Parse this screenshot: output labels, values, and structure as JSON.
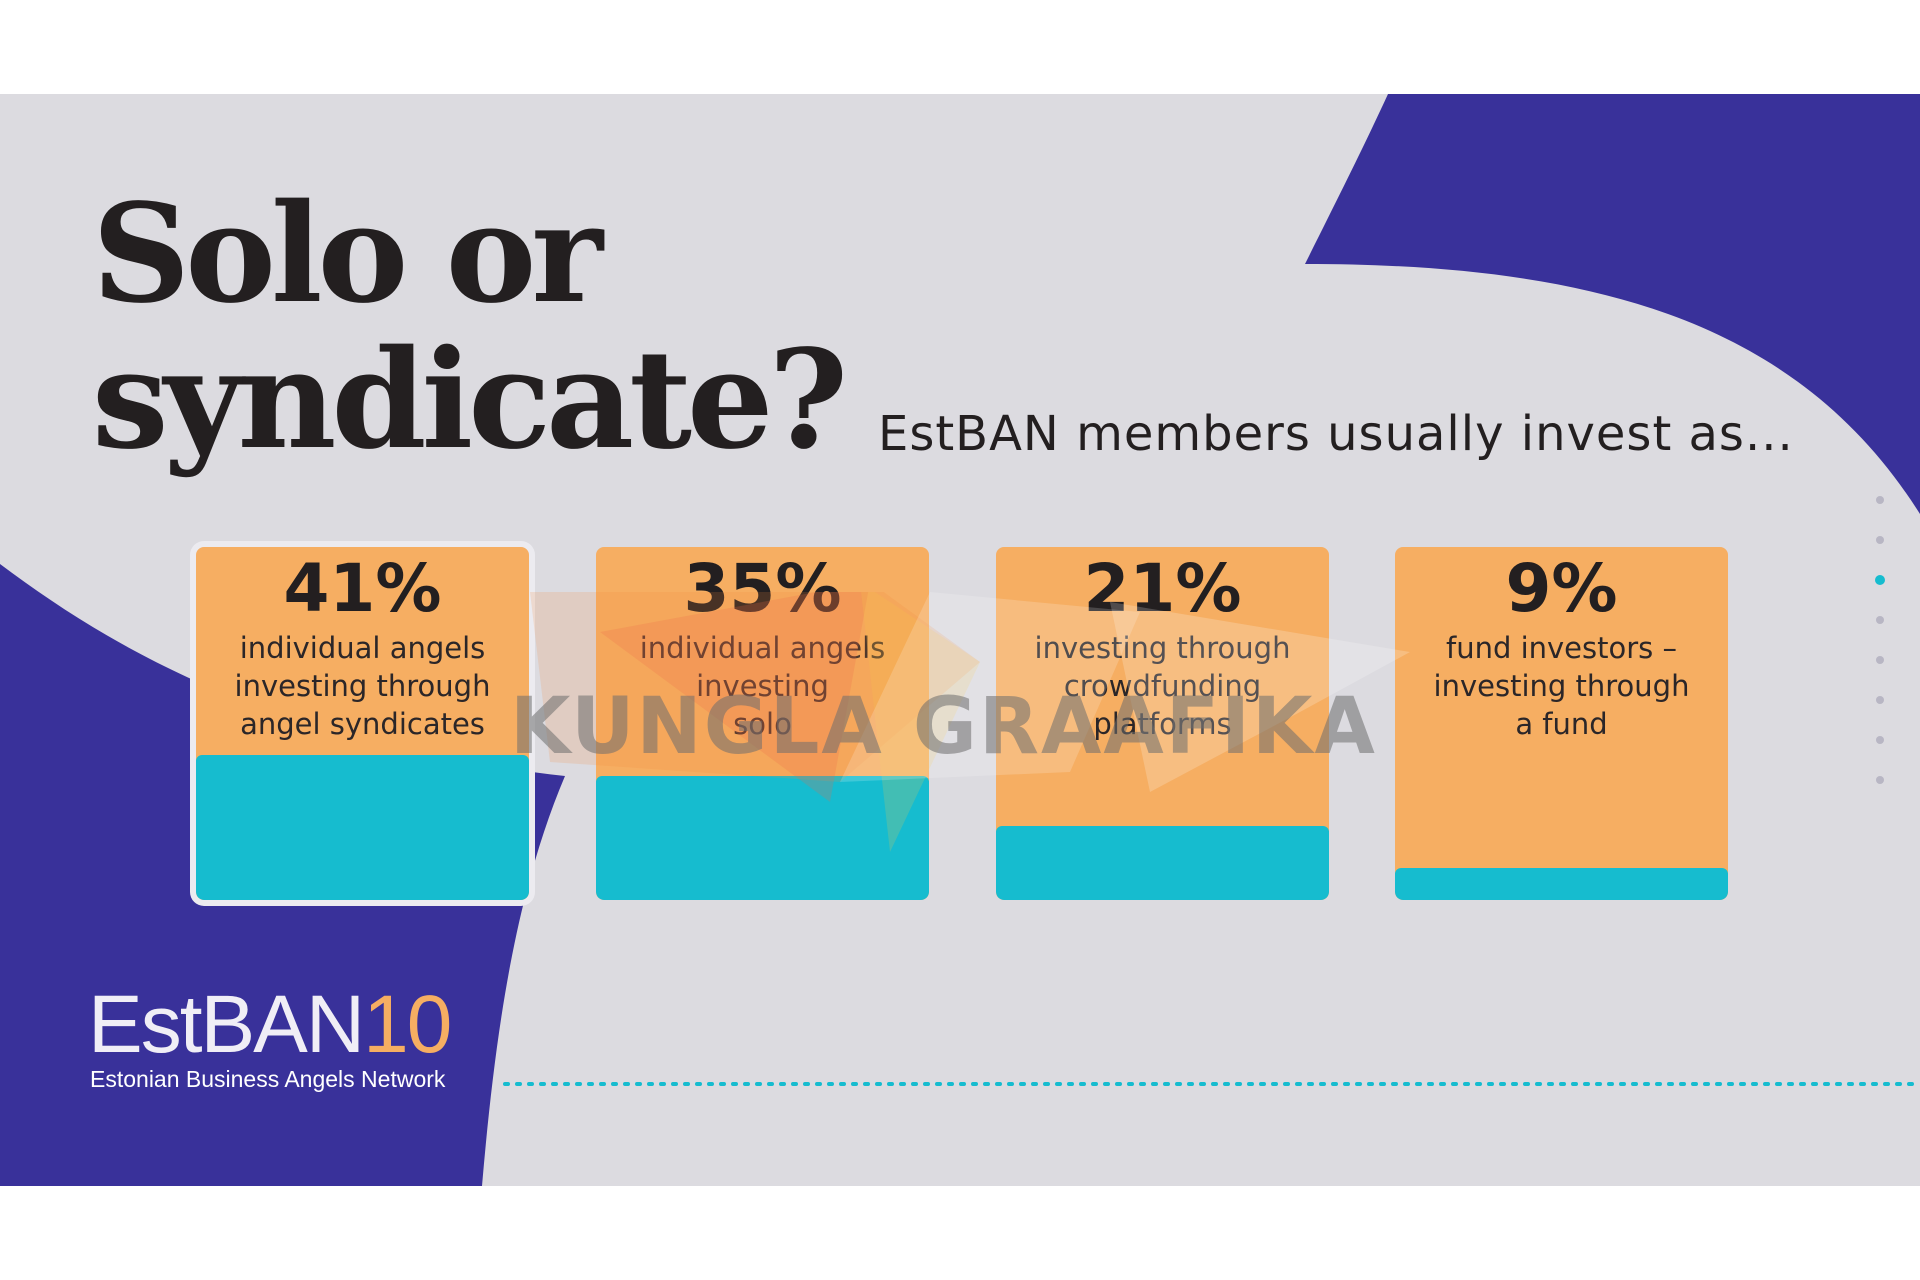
{
  "title_line1": "Solo or",
  "title_line2": "syndicate?",
  "subtitle": "EstBAN members usually invest as...",
  "colors": {
    "background": "#dcdbe0",
    "navy": "#39319a",
    "orange": "#f6ae62",
    "teal": "#16bccf",
    "text": "#231f20"
  },
  "chart_data": {
    "type": "bar",
    "title": "Solo or syndicate?",
    "subtitle": "EstBAN members usually invest as...",
    "categories": [
      "individual angels investing through angel syndicates",
      "individual angels investing solo",
      "investing through crowdfunding platforms",
      "fund investors – investing through a fund"
    ],
    "values": [
      41,
      35,
      21,
      9
    ],
    "unit": "%",
    "ylim": [
      0,
      100
    ],
    "bars": [
      {
        "label": "41%",
        "lines": [
          "individual angels",
          "investing through",
          "angel syndicates"
        ],
        "value": 41,
        "highlight": true
      },
      {
        "label": "35%",
        "lines": [
          "individual angels",
          "investing",
          "solo"
        ],
        "value": 35,
        "highlight": false
      },
      {
        "label": "21%",
        "lines": [
          "investing through",
          "crowdfunding",
          "platforms"
        ],
        "value": 21,
        "highlight": false
      },
      {
        "label": "9%",
        "lines": [
          "fund investors –",
          "investing through",
          "a fund"
        ],
        "value": 9,
        "highlight": false
      }
    ]
  },
  "logo": {
    "main": "EstBAN",
    "number": "10",
    "tagline": "Estonian Business Angels Network"
  },
  "watermark": "KUNGLA GRAAFIKA"
}
